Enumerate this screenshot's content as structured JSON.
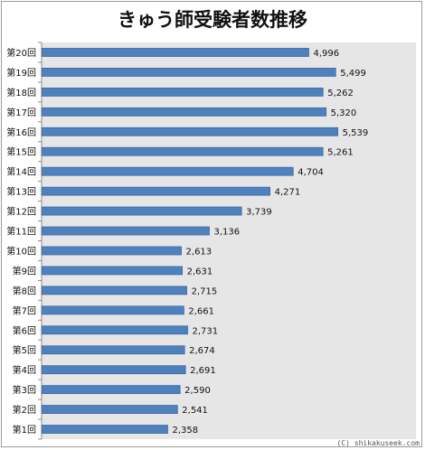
{
  "chart_data": {
    "type": "bar",
    "orientation": "horizontal",
    "title": "きゅう師受験者数推移",
    "categories": [
      "第20回",
      "第19回",
      "第18回",
      "第17回",
      "第16回",
      "第15回",
      "第14回",
      "第13回",
      "第12回",
      "第11回",
      "第10回",
      "第9回",
      "第8回",
      "第7回",
      "第6回",
      "第5回",
      "第4回",
      "第3回",
      "第2回",
      "第1回"
    ],
    "values": [
      4996,
      5499,
      5262,
      5320,
      5539,
      5261,
      4704,
      4271,
      3739,
      3136,
      2613,
      2631,
      2715,
      2661,
      2731,
      2674,
      2691,
      2590,
      2541,
      2358
    ],
    "value_labels": [
      "4,996",
      "5,499",
      "5,262",
      "5,320",
      "5,539",
      "5,261",
      "4,704",
      "4,271",
      "3,739",
      "3,136",
      "2,613",
      "2,631",
      "2,715",
      "2,661",
      "2,731",
      "2,674",
      "2,691",
      "2,590",
      "2,541",
      "2,358"
    ],
    "xlim": [
      0,
      7000
    ],
    "colors": {
      "bar": "#4f81bd",
      "bar_edge": "#3a6aa3",
      "plot_bg": "#e6e6e6"
    }
  },
  "footer": {
    "credit": "(C) shikakuseek.com"
  }
}
